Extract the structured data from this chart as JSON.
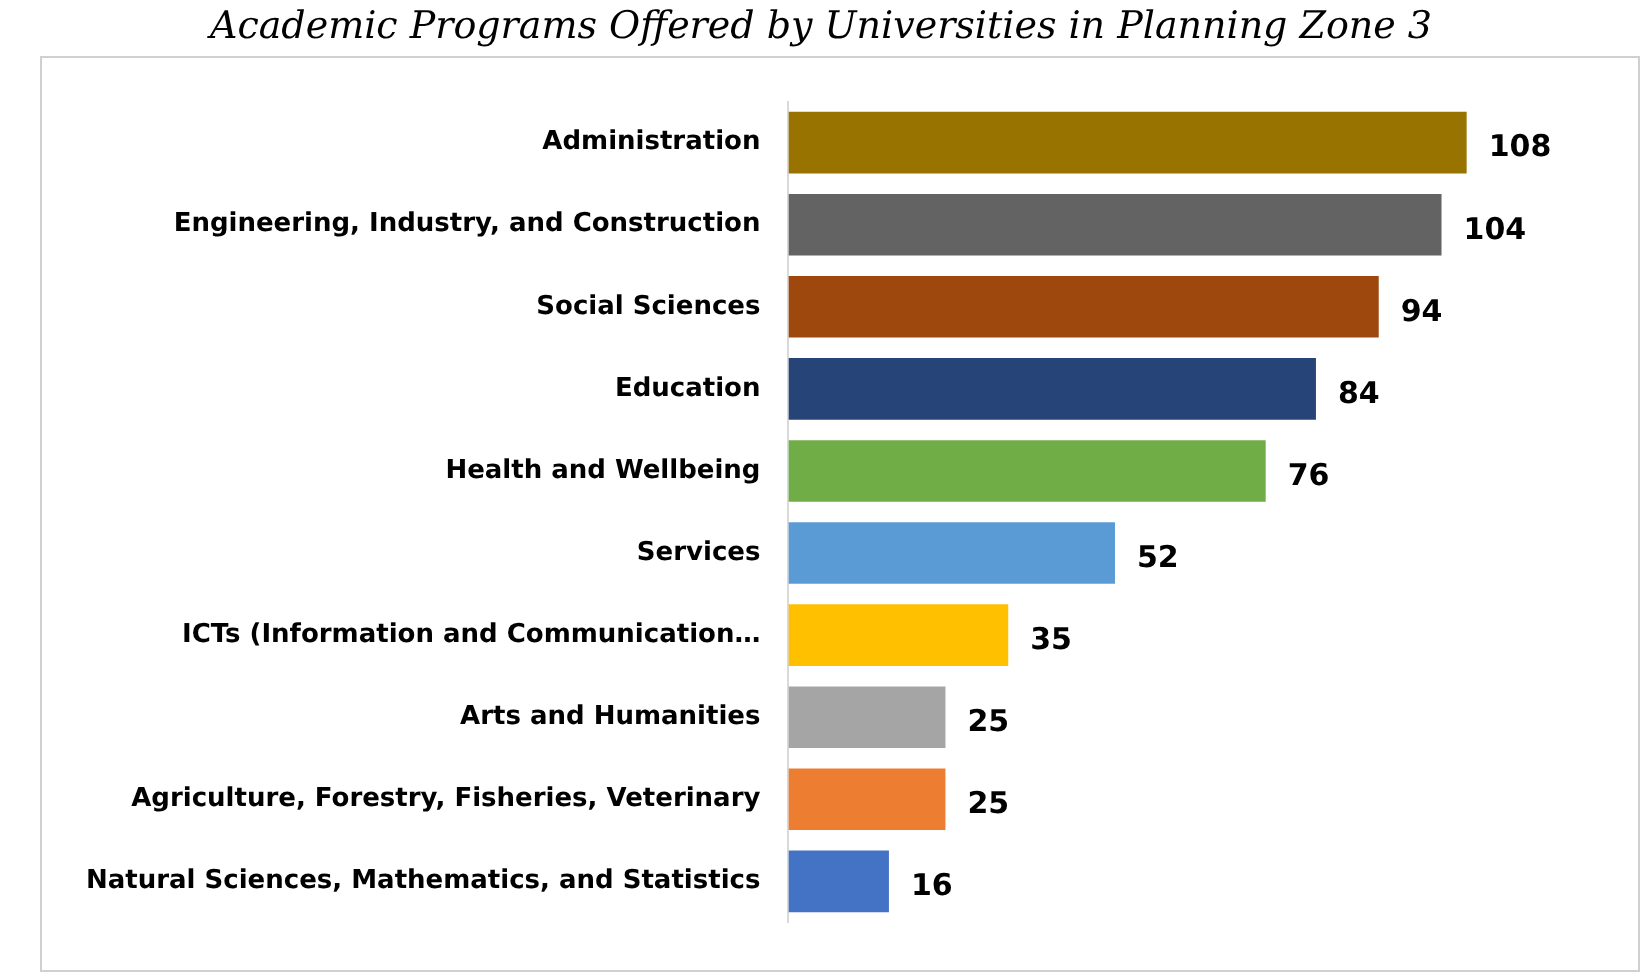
{
  "chart_data": {
    "type": "bar",
    "orientation": "horizontal",
    "title": "Academic Programs Offered by Universities in Planning Zone 3",
    "categories": [
      "Administration",
      "Engineering, Industry, and Construction",
      "Social Sciences",
      "Education",
      "Health and Wellbeing",
      "Services",
      "ICTs (Information and Communication…",
      "Arts and Humanities",
      "Agriculture, Forestry, Fisheries, Veterinary",
      "Natural Sciences, Mathematics, and Statistics"
    ],
    "values": [
      108,
      104,
      94,
      84,
      76,
      52,
      35,
      25,
      25,
      16
    ],
    "colors": [
      "#997300",
      "#636363",
      "#9e480e",
      "#264478",
      "#70ad47",
      "#5b9bd5",
      "#ffc000",
      "#a5a5a5",
      "#ed7d31",
      "#4472c4"
    ],
    "data_labels": true
  }
}
